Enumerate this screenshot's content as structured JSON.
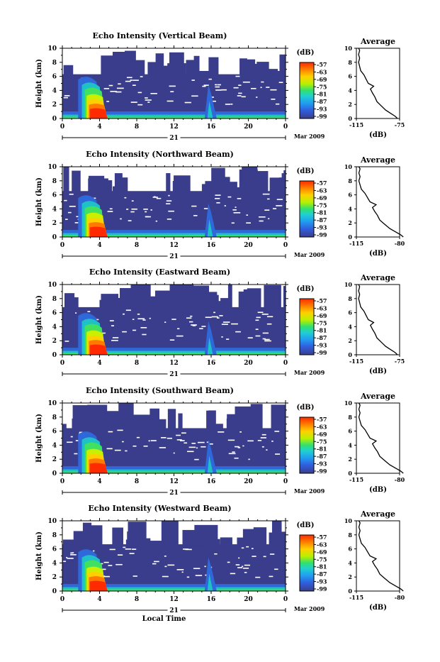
{
  "chart_data": [
    {
      "type": "heatmap",
      "title": "Echo Intensity (Vertical Beam)",
      "ylabel": "Height (km)",
      "xticks": [
        "0",
        "4",
        "8",
        "12",
        "16",
        "20",
        "0"
      ],
      "yticks": [
        "0",
        "2",
        "4",
        "6",
        "8",
        "10"
      ],
      "xlim": [
        0,
        24
      ],
      "ylim": [
        0,
        10
      ],
      "day_label": "21",
      "date_label": "Mar 2009",
      "colorbar": {
        "unit": "(dB)",
        "ticks": [
          "-57",
          "-63",
          "-69",
          "-75",
          "-81",
          "-87",
          "-93",
          "-99"
        ]
      },
      "average": {
        "title": "Average",
        "xlabel": "(dB)",
        "xticks": [
          "-115",
          "-75"
        ],
        "xlim": [
          -115,
          -75
        ],
        "yticks": [
          "0",
          "2",
          "4",
          "6",
          "8",
          "10"
        ]
      }
    },
    {
      "type": "heatmap",
      "title": "Echo Intensity (Northward Beam)",
      "ylabel": "Height (km)",
      "xticks": [
        "0",
        "4",
        "8",
        "12",
        "16",
        "20",
        "0"
      ],
      "yticks": [
        "0",
        "2",
        "4",
        "6",
        "8",
        "10"
      ],
      "xlim": [
        0,
        24
      ],
      "ylim": [
        0,
        10
      ],
      "day_label": "21",
      "date_label": "Mar 2009",
      "colorbar": {
        "unit": "(dB)",
        "ticks": [
          "-57",
          "-63",
          "-69",
          "-75",
          "-81",
          "-87",
          "-93",
          "-99"
        ]
      },
      "average": {
        "title": "Average",
        "xlabel": "(dB)",
        "xticks": [
          "-115",
          "-80"
        ],
        "xlim": [
          -115,
          -80
        ],
        "yticks": [
          "0",
          "2",
          "4",
          "6",
          "8",
          "10"
        ]
      }
    },
    {
      "type": "heatmap",
      "title": "Echo Intensity (Eastward Beam)",
      "ylabel": "Height (km)",
      "xticks": [
        "0",
        "4",
        "8",
        "12",
        "16",
        "20",
        "0"
      ],
      "yticks": [
        "0",
        "2",
        "4",
        "6",
        "8",
        "10"
      ],
      "xlim": [
        0,
        24
      ],
      "ylim": [
        0,
        10
      ],
      "day_label": "21",
      "date_label": "Mar 2009",
      "colorbar": {
        "unit": "(dB)",
        "ticks": [
          "-57",
          "-63",
          "-69",
          "-75",
          "-81",
          "-87",
          "-93",
          "-99"
        ]
      },
      "average": {
        "title": "Average",
        "xlabel": "(dB)",
        "xticks": [
          "-115",
          "-75"
        ],
        "xlim": [
          -115,
          -75
        ],
        "yticks": [
          "0",
          "2",
          "4",
          "6",
          "8",
          "10"
        ]
      }
    },
    {
      "type": "heatmap",
      "title": "Echo Intensity (Southward Beam)",
      "ylabel": "Height (km)",
      "xticks": [
        "0",
        "4",
        "8",
        "12",
        "16",
        "20",
        "0"
      ],
      "yticks": [
        "0",
        "2",
        "4",
        "6",
        "8",
        "10"
      ],
      "xlim": [
        0,
        24
      ],
      "ylim": [
        0,
        10
      ],
      "day_label": "21",
      "date_label": "Mar 2009",
      "colorbar": {
        "unit": "(dB)",
        "ticks": [
          "-57",
          "-63",
          "-69",
          "-75",
          "-81",
          "-87",
          "-93",
          "-99"
        ]
      },
      "average": {
        "title": "Average",
        "xlabel": "(dB)",
        "xticks": [
          "-115",
          "-80"
        ],
        "xlim": [
          -115,
          -80
        ],
        "yticks": [
          "0",
          "2",
          "4",
          "6",
          "8",
          "10"
        ]
      }
    },
    {
      "type": "heatmap",
      "title": "Echo Intensity (Westward Beam)",
      "ylabel": "Height (km)",
      "xticks": [
        "0",
        "4",
        "8",
        "12",
        "16",
        "20",
        "0"
      ],
      "yticks": [
        "0",
        "2",
        "4",
        "6",
        "8",
        "10"
      ],
      "xlim": [
        0,
        24
      ],
      "ylim": [
        0,
        10
      ],
      "day_label": "21",
      "date_label": "Mar 2009",
      "colorbar": {
        "unit": "(dB)",
        "ticks": [
          "-57",
          "-63",
          "-69",
          "-75",
          "-81",
          "-87",
          "-93",
          "-99"
        ]
      },
      "average": {
        "title": "Average",
        "xlabel": "(dB)",
        "xticks": [
          "-115",
          "-80"
        ],
        "xlim": [
          -115,
          -80
        ],
        "yticks": [
          "0",
          "2",
          "4",
          "6",
          "8",
          "10"
        ]
      }
    }
  ],
  "xlabel": "Local Time",
  "colors": {
    "background_echo": "#3a3d8c",
    "colorbar_top": "#ff2a00",
    "colorbar_bottom": "#3a3d8c"
  }
}
